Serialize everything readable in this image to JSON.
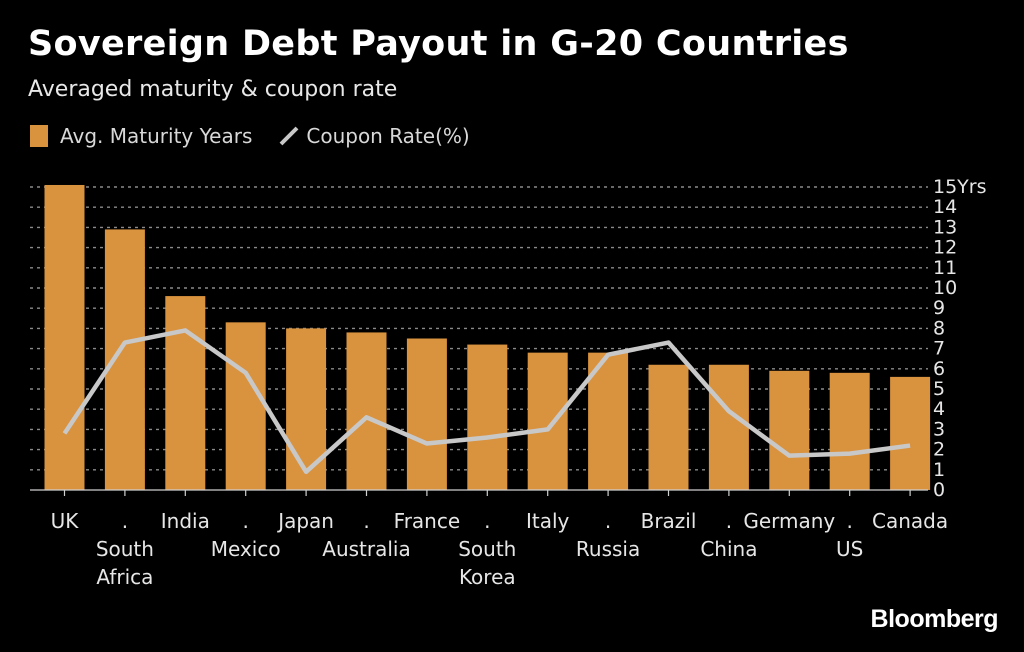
{
  "header": {
    "title": "Sovereign Debt Payout in G-20 Countries",
    "subtitle": "Averaged maturity & coupon rate"
  },
  "legend": {
    "bar_label": "Avg. Maturity Years",
    "line_label": "Coupon Rate(%)"
  },
  "colors": {
    "bar": "#d9923e",
    "line": "#c8c8c8",
    "grid": "#8a8a8a",
    "axis_text": "#e6e6e6",
    "background": "#000000"
  },
  "brand": "Bloomberg",
  "chart_data": {
    "type": "bar",
    "title": "Sovereign Debt Payout in G-20 Countries",
    "subtitle": "Averaged maturity & coupon rate",
    "categories": [
      "UK",
      "South Africa",
      "India",
      "Mexico",
      "Japan",
      "Australia",
      "France",
      "South Korea",
      "Italy",
      "Russia",
      "Brazil",
      "China",
      "Germany",
      "US",
      "Canada"
    ],
    "category_label_lines": [
      [
        "UK"
      ],
      [
        "South",
        "Africa"
      ],
      [
        "India"
      ],
      [
        "Mexico"
      ],
      [
        "Japan"
      ],
      [
        "Australia"
      ],
      [
        "France"
      ],
      [
        "South",
        "Korea"
      ],
      [
        "Italy"
      ],
      [
        "Russia"
      ],
      [
        "Brazil"
      ],
      [
        "China"
      ],
      [
        "Germany"
      ],
      [
        "US"
      ],
      [
        "Canada"
      ]
    ],
    "series": [
      {
        "name": "Avg. Maturity Years",
        "type": "bar",
        "values": [
          15.1,
          12.9,
          9.6,
          8.3,
          8.0,
          7.8,
          7.5,
          7.2,
          6.8,
          6.8,
          6.2,
          6.2,
          5.9,
          5.8,
          5.6
        ]
      },
      {
        "name": "Coupon Rate(%)",
        "type": "line",
        "values": [
          2.8,
          7.3,
          7.9,
          5.8,
          0.9,
          3.6,
          2.3,
          2.6,
          3.0,
          6.7,
          7.3,
          3.9,
          1.7,
          1.8,
          2.2
        ]
      }
    ],
    "ylim": [
      0,
      15
    ],
    "yticks": [
      0,
      1,
      2,
      3,
      4,
      5,
      6,
      7,
      8,
      9,
      10,
      11,
      12,
      13,
      14,
      15
    ],
    "ytick_labels": [
      "0",
      "1",
      "2",
      "3",
      "4",
      "5",
      "6",
      "7",
      "8",
      "9",
      "10",
      "11",
      "12",
      "13",
      "14",
      "15Yrs"
    ],
    "tick_marker": ".",
    "grid": true,
    "xlabel": "",
    "ylabel": ""
  }
}
